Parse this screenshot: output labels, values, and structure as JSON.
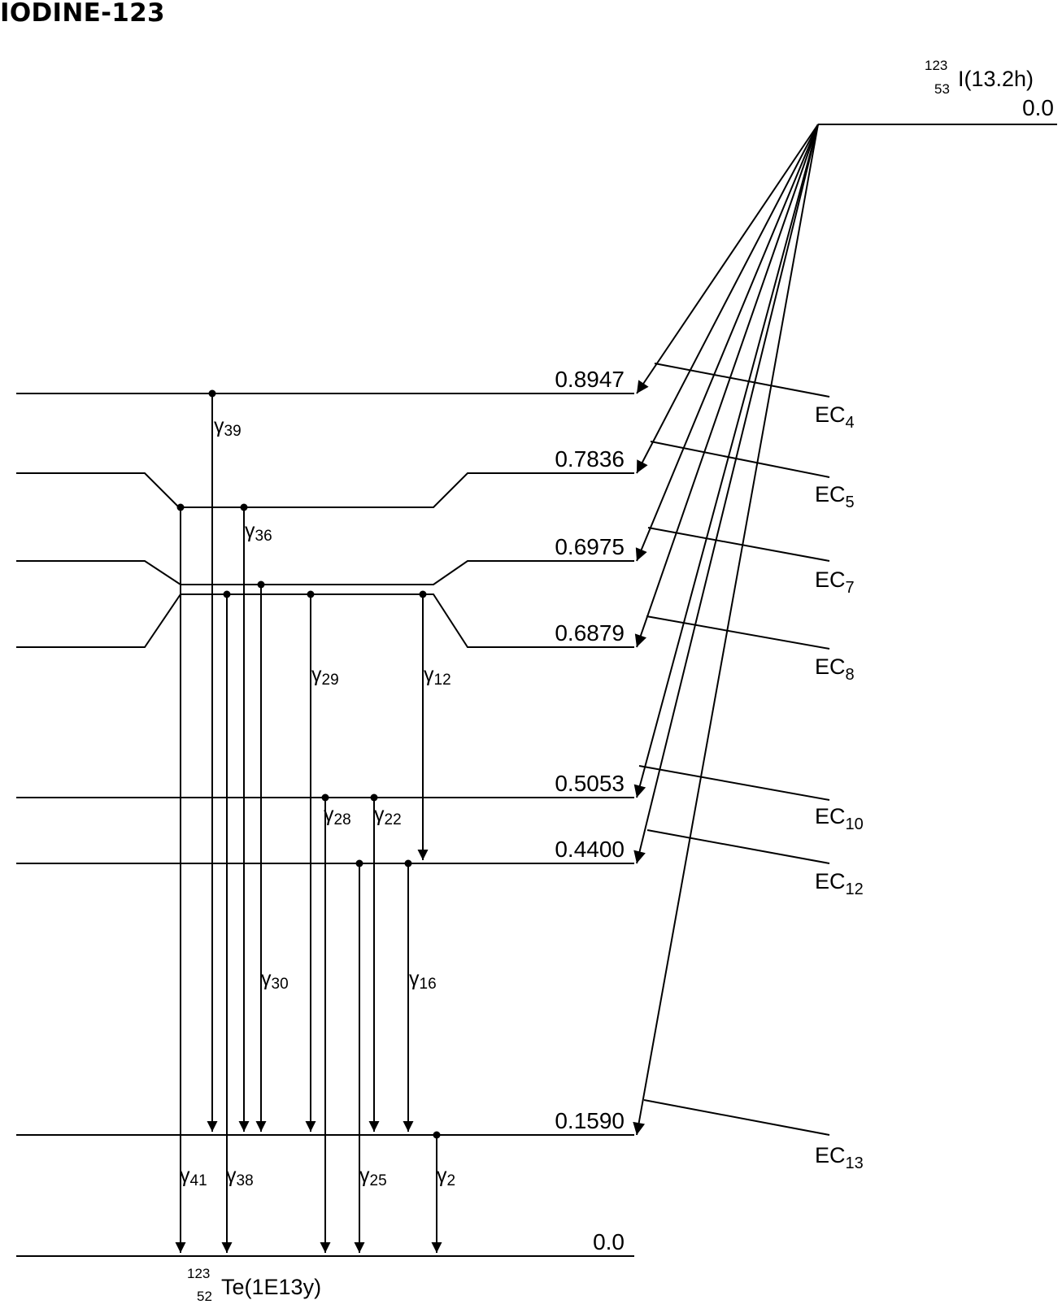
{
  "title": "IODINE-123",
  "parent": {
    "mass_number": "123",
    "atomic_number": "53",
    "label": "I(13.2h)",
    "energy": "0.0"
  },
  "daughter": {
    "mass_number": "123",
    "atomic_number": "52",
    "label": "Te(1E13y)",
    "energy": "0.0"
  },
  "levels": [
    {
      "id": "L8947",
      "energy": "0.8947"
    },
    {
      "id": "L7836",
      "energy": "0.7836"
    },
    {
      "id": "L6975",
      "energy": "0.6975"
    },
    {
      "id": "L6879",
      "energy": "0.6879"
    },
    {
      "id": "L5053",
      "energy": "0.5053"
    },
    {
      "id": "L4400",
      "energy": "0.4400"
    },
    {
      "id": "L1590",
      "energy": "0.1590"
    },
    {
      "id": "L0",
      "energy": "0.0"
    }
  ],
  "ec_branches": [
    {
      "level": "0.8947",
      "label": "EC",
      "sub": "4"
    },
    {
      "level": "0.7836",
      "label": "EC",
      "sub": "5"
    },
    {
      "level": "0.6975",
      "label": "EC",
      "sub": "7"
    },
    {
      "level": "0.6879",
      "label": "EC",
      "sub": "8"
    },
    {
      "level": "0.5053",
      "label": "EC",
      "sub": "10"
    },
    {
      "level": "0.4400",
      "label": "EC",
      "sub": "12"
    },
    {
      "level": "0.1590",
      "label": "EC",
      "sub": "13"
    }
  ],
  "gammas": [
    {
      "label": "γ",
      "sub": "39",
      "from": "0.8947",
      "to": "0.1590"
    },
    {
      "label": "γ",
      "sub": "36",
      "from": "0.7836",
      "to": "0.1590"
    },
    {
      "label": "γ",
      "sub": "41",
      "from": "0.7836",
      "to": "0.0"
    },
    {
      "label": "γ",
      "sub": "30",
      "from": "0.6975",
      "to": "0.1590"
    },
    {
      "label": "γ",
      "sub": "38",
      "from": "0.6879",
      "to": "0.0"
    },
    {
      "label": "γ",
      "sub": "29",
      "from": "0.6879",
      "to": "0.1590"
    },
    {
      "label": "γ",
      "sub": "12",
      "from": "0.6879",
      "to": "0.4400"
    },
    {
      "label": "γ",
      "sub": "28",
      "from": "0.5053",
      "to": "0.0"
    },
    {
      "label": "γ",
      "sub": "22",
      "from": "0.5053",
      "to": "0.1590"
    },
    {
      "label": "γ",
      "sub": "25",
      "from": "0.4400",
      "to": "0.0"
    },
    {
      "label": "γ",
      "sub": "16",
      "from": "0.4400",
      "to": "0.1590"
    },
    {
      "label": "γ",
      "sub": "2",
      "from": "0.1590",
      "to": "0.0"
    }
  ]
}
